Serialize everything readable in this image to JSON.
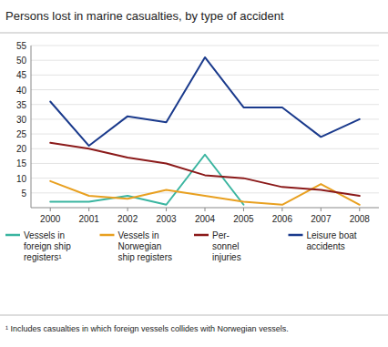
{
  "chart_data": {
    "type": "line",
    "title": "Persons lost in marine casualties, by type of accident",
    "annotations": [
      "¹ Includes casualties in which foreign vessels collides with Norwegian vessels."
    ],
    "x": [
      2000,
      2001,
      2002,
      2003,
      2004,
      2005,
      2006,
      2007,
      2008
    ],
    "series": [
      {
        "name": "Vessels in\nforeign ship\nregisters¹",
        "color": "#3ab5a0",
        "values": [
          2,
          2,
          4,
          1,
          18,
          1,
          null,
          null,
          null
        ]
      },
      {
        "name": "Vessels in\nNorwegian\nship registers",
        "color": "#e8a020",
        "values": [
          9,
          4,
          3,
          6,
          4,
          2,
          1,
          8,
          1
        ]
      },
      {
        "name": "Per-\nsonnel\ninjuries",
        "color": "#8b1a1a",
        "values": [
          22,
          20,
          17,
          15,
          11,
          10,
          7,
          6,
          4
        ]
      },
      {
        "name": "Leisure boat\naccidents",
        "color": "#1a3a8c",
        "values": [
          36,
          21,
          31,
          29,
          51,
          34,
          34,
          24,
          30
        ]
      }
    ],
    "xlim": [
      1999.5,
      2008.5
    ],
    "xticks": [
      2000,
      2001,
      2002,
      2003,
      2004,
      2005,
      2006,
      2007,
      2008
    ],
    "ylim": [
      0,
      55
    ],
    "yticks": [
      5,
      10,
      15,
      20,
      25,
      30,
      35,
      40,
      45,
      50,
      55
    ],
    "grid": true,
    "legend": "bottom"
  }
}
